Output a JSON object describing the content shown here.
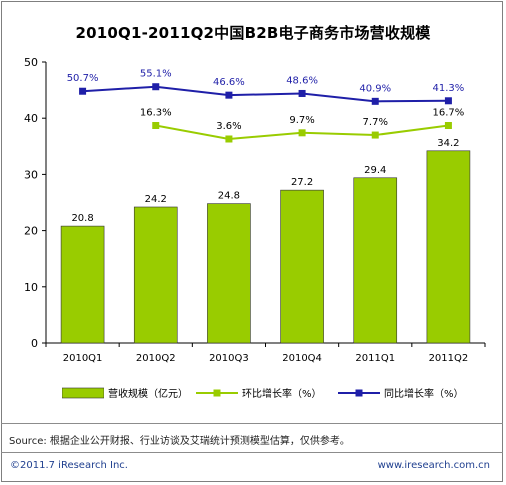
{
  "chart_data": {
    "type": "bar",
    "title": "2010Q1-2011Q2中国B2B电子商务市场营收规模",
    "categories": [
      "2010Q1",
      "2010Q2",
      "2010Q3",
      "2010Q4",
      "2011Q1",
      "2011Q2"
    ],
    "ylim": [
      0,
      50
    ],
    "yticks": [
      0,
      10,
      20,
      30,
      40,
      50
    ],
    "grid": false,
    "legend_position": "bottom",
    "series": [
      {
        "name": "营收规模（亿元）",
        "type": "bar",
        "values": [
          20.8,
          24.2,
          24.8,
          27.2,
          29.4,
          34.2
        ],
        "labels": [
          "20.8",
          "24.2",
          "24.8",
          "27.2",
          "29.4",
          "34.2"
        ],
        "color": "#99cc00"
      },
      {
        "name": "环比增长率（%）",
        "type": "line",
        "values": [
          null,
          38.7,
          36.3,
          37.4,
          37.0,
          38.7
        ],
        "labels": [
          null,
          "16.3%",
          "3.6%",
          "9.7%",
          "7.7%",
          "16.7%"
        ],
        "color": "#99cc00"
      },
      {
        "name": "同比增长率（%）",
        "type": "line",
        "values": [
          44.8,
          45.6,
          44.1,
          44.4,
          43.0,
          43.1
        ],
        "labels": [
          "50.7%",
          "55.1%",
          "46.6%",
          "48.6%",
          "40.9%",
          "41.3%"
        ],
        "color": "#1f1fa8"
      }
    ]
  },
  "source": "Source: 根据企业公开财报、行业访谈及艾瑞统计预测模型估算，仅供参考。",
  "copyright": "©2011.7 iResearch Inc.",
  "website": "www.iresearch.com.cn"
}
